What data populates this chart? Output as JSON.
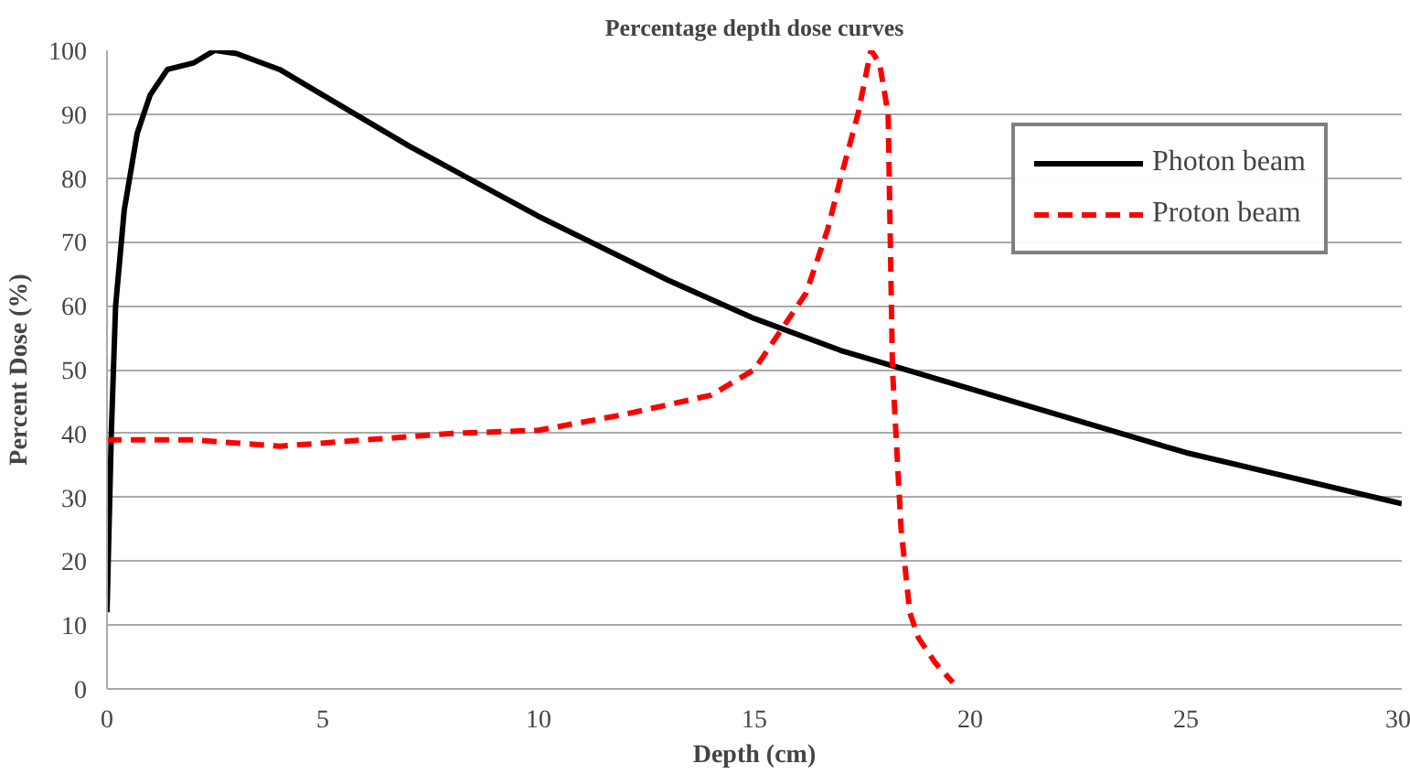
{
  "chart_data": {
    "type": "line",
    "title": "Percentage depth dose curves",
    "xlabel": "Depth (cm)",
    "ylabel": "Percent Dose (%)",
    "xlim": [
      0,
      30
    ],
    "ylim": [
      0,
      100
    ],
    "xticks": [
      0,
      5,
      10,
      15,
      20,
      25,
      30
    ],
    "yticks": [
      0,
      10,
      20,
      30,
      40,
      50,
      60,
      70,
      80,
      90,
      100
    ],
    "grid": "y",
    "legend": "top right",
    "marker": "none",
    "series": [
      {
        "name": "Photon beam",
        "color": "#000000",
        "line_style": "solid",
        "x": [
          0,
          0.1,
          0.2,
          0.4,
          0.7,
          1,
          1.4,
          2,
          2.5,
          3,
          4,
          5,
          7,
          10,
          13,
          15,
          17,
          20,
          25,
          30
        ],
        "values": [
          12,
          40,
          60,
          75,
          87,
          93,
          97,
          98,
          100,
          99.5,
          97,
          93,
          85,
          74,
          64,
          58,
          53,
          47,
          37,
          29
        ]
      },
      {
        "name": "Proton beam",
        "color": "#ff0000",
        "line_style": "dashed",
        "x": [
          0,
          2,
          4,
          6,
          8,
          10,
          12,
          14,
          15,
          15.6,
          16.2,
          16.7,
          17,
          17.4,
          17.7,
          17.9,
          18.1,
          18.2,
          18.4,
          18.6,
          18.8,
          19.2,
          19.6
        ],
        "values": [
          39,
          39,
          38,
          39,
          40,
          40.5,
          43,
          46,
          50,
          56,
          62,
          72,
          80,
          90,
          100,
          98,
          90,
          50,
          25,
          12,
          8,
          4,
          1
        ]
      }
    ]
  }
}
